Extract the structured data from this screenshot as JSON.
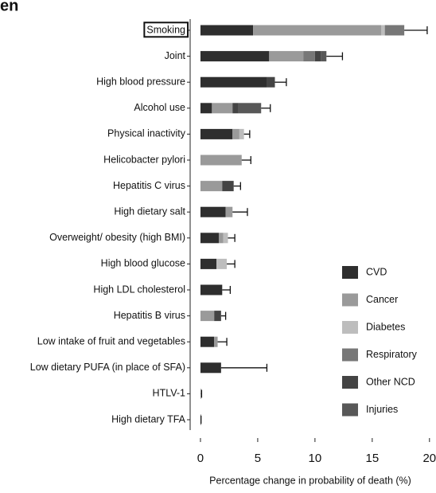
{
  "chart_data": {
    "type": "bar",
    "orientation": "horizontal",
    "stacked": true,
    "title": "en",
    "x_label": "Percentage change in probability of death (%)",
    "categories": [
      "Smoking",
      "Joint",
      "High blood pressure",
      "Alcohol use",
      "Physical inactivity",
      "Helicobacter pylori",
      "Hepatitis C virus",
      "High dietary salt",
      "Overweight/ obesity (high BMI)",
      "High blood glucose",
      "High LDL cholesterol",
      "Hepatitis B virus",
      "Low intake of fruit and vegetables",
      "Low dietary PUFA (in place of SFA)",
      "HTLV-1",
      "High dietary TFA"
    ],
    "highlighted_category": "Smoking",
    "series": [
      {
        "name": "CVD",
        "color": "#2e2e2e",
        "values": [
          4.6,
          6,
          5.8,
          1,
          2.8,
          0,
          0,
          2.2,
          1.6,
          1.4,
          1.9,
          0,
          1.2,
          1.8,
          0,
          0.05
        ]
      },
      {
        "name": "Cancer",
        "color": "#9a9a9a",
        "values": [
          11.2,
          3,
          0,
          1.8,
          0.6,
          3.6,
          1.9,
          0.6,
          0.4,
          0,
          0,
          1.2,
          0.3,
          0,
          0.05,
          0
        ]
      },
      {
        "name": "Diabetes",
        "color": "#bdbdbd",
        "values": [
          0.3,
          0,
          0,
          0,
          0.4,
          0,
          0,
          0,
          0.4,
          0.9,
          0,
          0,
          0,
          0,
          0,
          0
        ]
      },
      {
        "name": "Respiratory",
        "color": "#777777",
        "values": [
          1.7,
          1,
          0,
          0,
          0,
          0,
          0,
          0,
          0,
          0,
          0,
          0,
          0,
          0,
          0,
          0
        ]
      },
      {
        "name": "Other NCD",
        "color": "#444444",
        "values": [
          0,
          0.5,
          0.7,
          0.5,
          0,
          0,
          1,
          0,
          0,
          0,
          0,
          0.6,
          0,
          0,
          0,
          0
        ]
      },
      {
        "name": "Injuries",
        "color": "#585858",
        "values": [
          0,
          0.5,
          0,
          2,
          0,
          0,
          0,
          0,
          0,
          0,
          0,
          0,
          0,
          0,
          0,
          0
        ]
      }
    ],
    "errors": [
      2,
      1.4,
      1,
      0.8,
      0.5,
      0.8,
      0.6,
      1.3,
      0.6,
      0.7,
      0.7,
      0.4,
      0.8,
      4,
      0.05,
      0
    ],
    "xlim": [
      -0.9,
      20.5
    ],
    "xticks": [
      0,
      5,
      10,
      15,
      20
    ],
    "legend": "lower-right"
  }
}
